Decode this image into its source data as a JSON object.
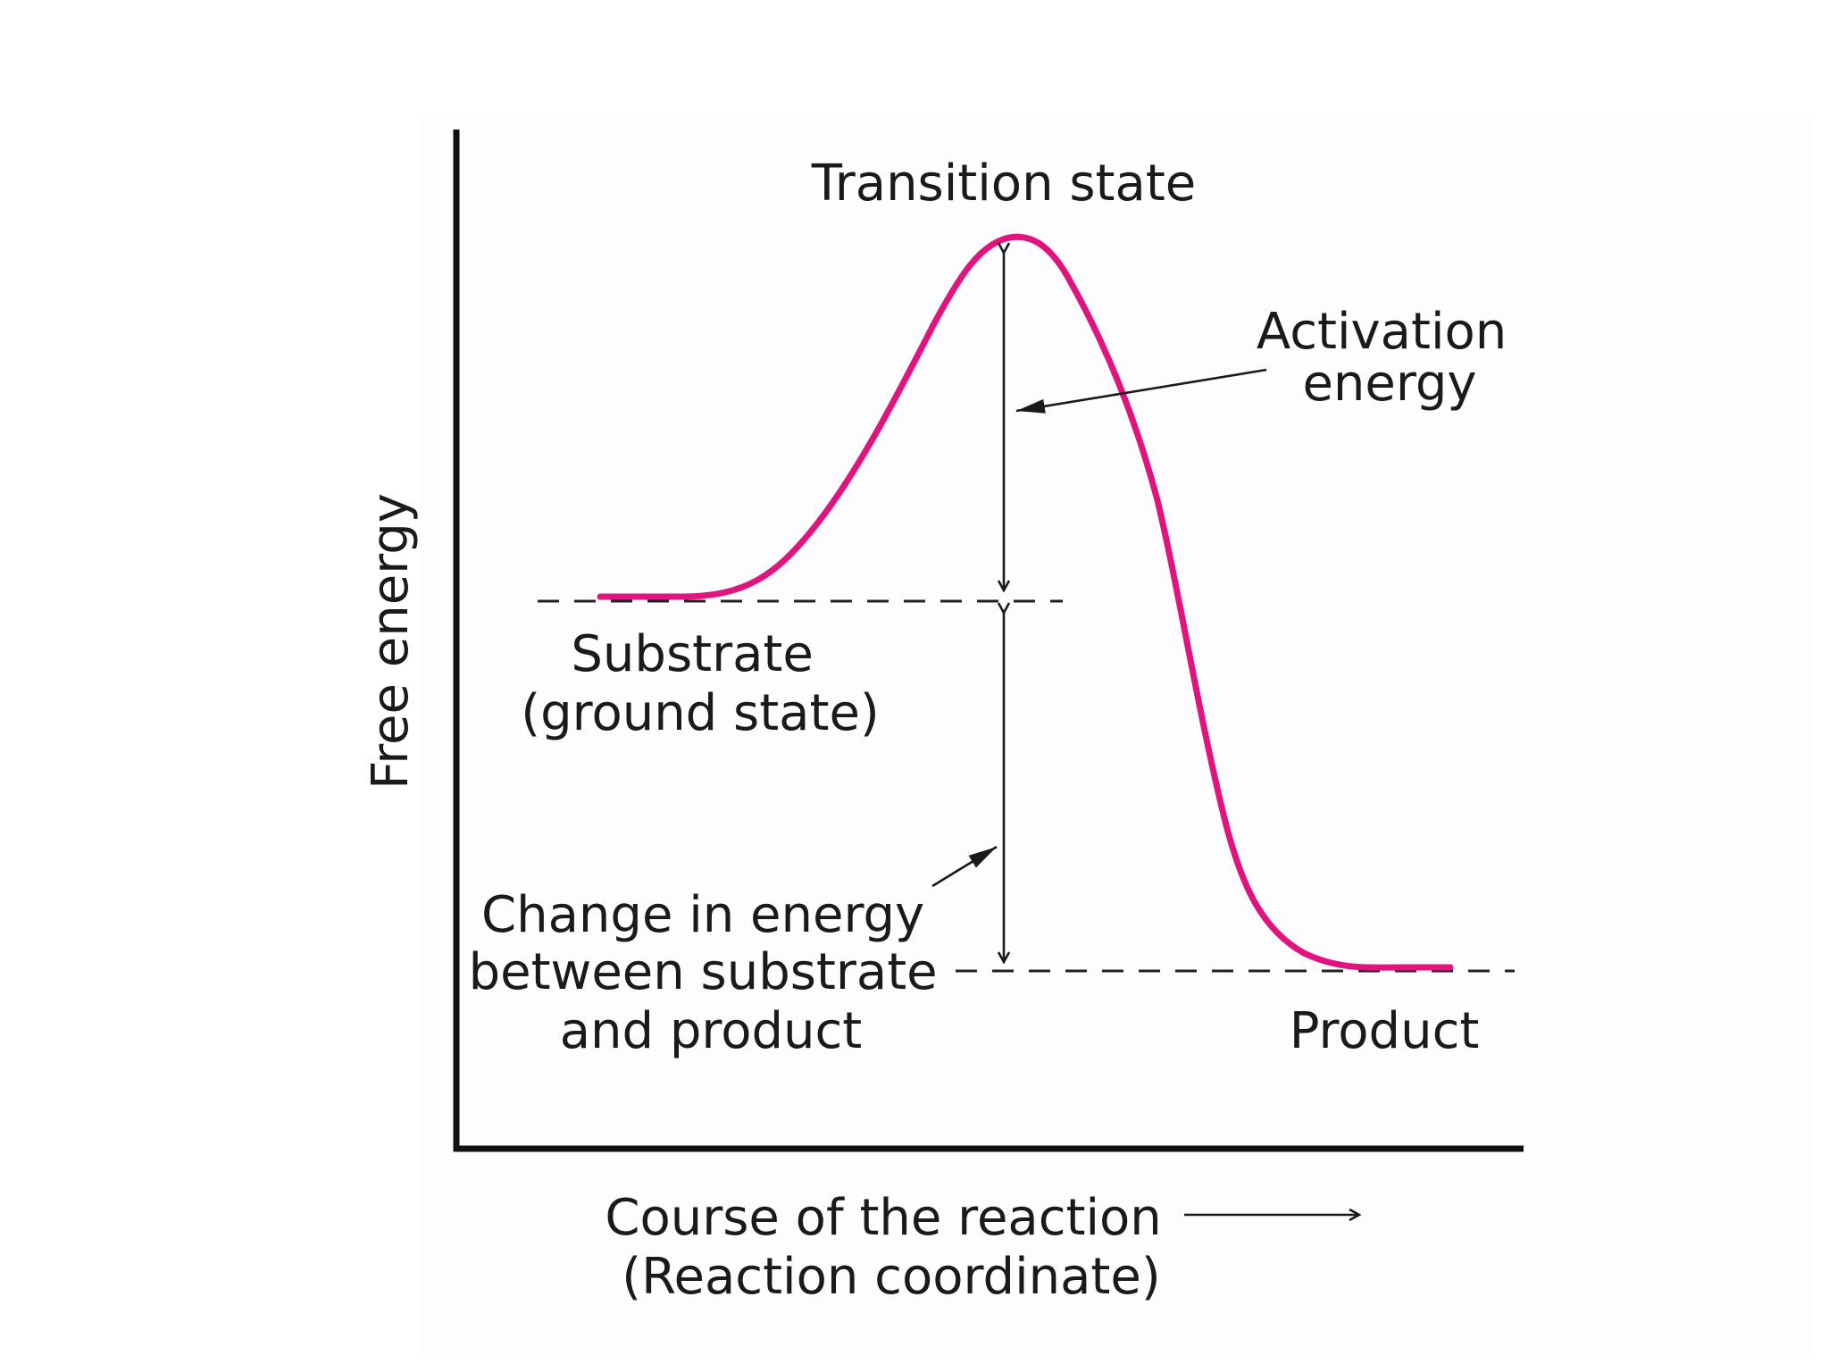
{
  "labels": {
    "transition_state": "Transition state",
    "activation_energy": [
      "Activation",
      "energy"
    ],
    "substrate": [
      "Substrate",
      "(ground state)"
    ],
    "energy_change": [
      "Change in energy",
      "between substrate",
      "and product"
    ],
    "product": "Product",
    "y_axis": "Free energy",
    "x_axis": [
      "Course of the reaction",
      "(Reaction coordinate)"
    ]
  },
  "colors": {
    "curve": "#e0137f",
    "axes": "#111111",
    "text": "#1a1a1a"
  }
}
